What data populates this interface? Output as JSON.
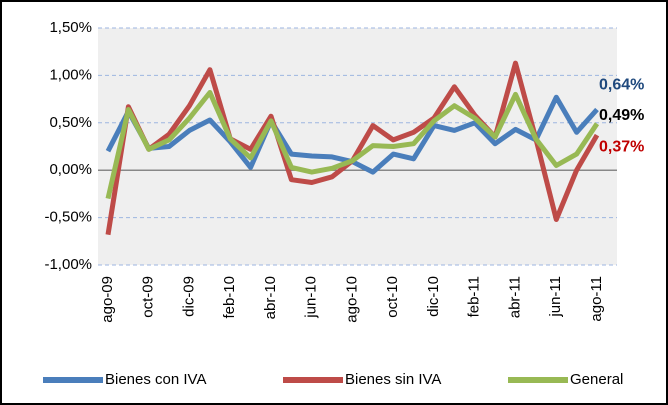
{
  "chart_data": {
    "type": "line",
    "categories": [
      "ago-09",
      null,
      "oct-09",
      null,
      "dic-09",
      null,
      "feb-10",
      null,
      "abr-10",
      null,
      "jun-10",
      null,
      "ago-10",
      null,
      "oct-10",
      null,
      "dic-10",
      null,
      "feb-11",
      null,
      "abr-11",
      null,
      "jun-11",
      null,
      "ago-11"
    ],
    "series": [
      {
        "name": "Bienes con IVA",
        "color": "#4a7ebb",
        "label_color": "#1f497d",
        "values": [
          0.2,
          0.62,
          0.23,
          0.25,
          0.42,
          0.53,
          0.3,
          0.03,
          0.52,
          0.17,
          0.15,
          0.14,
          0.09,
          -0.02,
          0.17,
          0.12,
          0.47,
          0.42,
          0.5,
          0.28,
          0.43,
          0.32,
          0.77,
          0.4,
          0.64
        ],
        "value_labels": [
          null,
          null,
          null,
          null,
          null,
          null,
          null,
          null,
          null,
          null,
          null,
          null,
          null,
          null,
          null,
          null,
          null,
          null,
          null,
          null,
          null,
          null,
          null,
          null,
          "0,64%"
        ]
      },
      {
        "name": "Bienes sin IVA",
        "color": "#be4b48",
        "label_color": "#c00000",
        "values": [
          -0.68,
          0.67,
          0.22,
          0.38,
          0.68,
          1.06,
          0.33,
          0.22,
          0.57,
          -0.1,
          -0.13,
          -0.07,
          0.1,
          0.47,
          0.32,
          0.4,
          0.55,
          0.88,
          0.58,
          0.35,
          1.13,
          0.33,
          -0.52,
          0.0,
          0.37
        ],
        "value_labels": [
          null,
          null,
          null,
          null,
          null,
          null,
          null,
          null,
          null,
          null,
          null,
          null,
          null,
          null,
          null,
          null,
          null,
          null,
          null,
          null,
          null,
          null,
          null,
          null,
          "0,37%"
        ]
      },
      {
        "name": "General",
        "color": "#98b954",
        "label_color": "#000000",
        "values": [
          -0.3,
          0.64,
          0.22,
          0.32,
          0.55,
          0.82,
          0.33,
          0.13,
          0.52,
          0.03,
          -0.02,
          0.02,
          0.1,
          0.26,
          0.25,
          0.28,
          0.52,
          0.68,
          0.55,
          0.35,
          0.8,
          0.33,
          0.05,
          0.17,
          0.49
        ],
        "value_labels": [
          null,
          null,
          null,
          null,
          null,
          null,
          null,
          null,
          null,
          null,
          null,
          null,
          null,
          null,
          null,
          null,
          null,
          null,
          null,
          null,
          null,
          null,
          null,
          null,
          "0,49%"
        ]
      }
    ],
    "ylim": [
      -1.0,
      1.5
    ],
    "yticks": [
      {
        "value": -1.0,
        "label": "-1,00%"
      },
      {
        "value": -0.5,
        "label": "-0,50%"
      },
      {
        "value": 0,
        "label": "0,00%"
      },
      {
        "value": 0.5,
        "label": "0,50%"
      },
      {
        "value": 1.0,
        "label": "1,00%"
      },
      {
        "value": 1.5,
        "label": "1,50%"
      }
    ],
    "grid": true
  }
}
